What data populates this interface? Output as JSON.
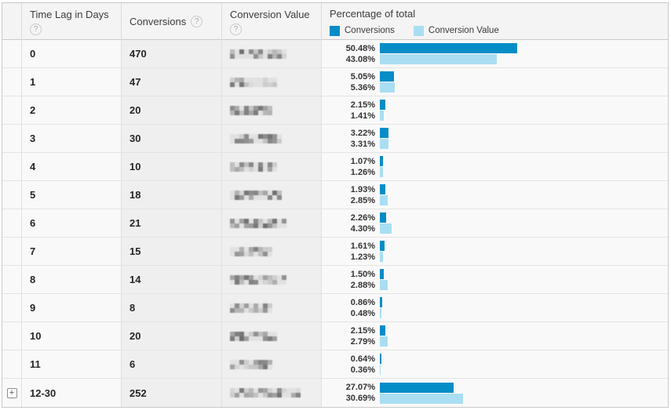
{
  "header": {
    "time_lag": "Time Lag in Days",
    "conversions": "Conversions",
    "conversion_value": "Conversion Value",
    "percentage_title": "Percentage of total",
    "help_icon": "?",
    "legend": [
      {
        "label": "Conversions",
        "color": "#058dc7"
      },
      {
        "label": "Conversion Value",
        "color": "#a9def2"
      }
    ]
  },
  "colors": {
    "conversions_bar": "#058dc7",
    "conversion_value_bar": "#a9def2"
  },
  "expand_icon": "+",
  "rows": [
    {
      "time_lag": "0",
      "conversions": "470",
      "conversion_value_masked": true,
      "mask_width": 73,
      "pct_conversions": 50.48,
      "pct_conversion_value": 43.08,
      "pct_conversions_label": "50.48%",
      "pct_conversion_value_label": "43.08%",
      "expandable": false
    },
    {
      "time_lag": "1",
      "conversions": "47",
      "conversion_value_masked": true,
      "mask_width": 64,
      "pct_conversions": 5.05,
      "pct_conversion_value": 5.36,
      "pct_conversions_label": "5.05%",
      "pct_conversion_value_label": "5.36%",
      "expandable": false
    },
    {
      "time_lag": "2",
      "conversions": "20",
      "conversion_value_masked": true,
      "mask_width": 54,
      "pct_conversions": 2.15,
      "pct_conversion_value": 1.41,
      "pct_conversions_label": "2.15%",
      "pct_conversion_value_label": "1.41%",
      "expandable": false
    },
    {
      "time_lag": "3",
      "conversions": "30",
      "conversion_value_masked": true,
      "mask_width": 68,
      "pct_conversions": 3.22,
      "pct_conversion_value": 3.31,
      "pct_conversions_label": "3.22%",
      "pct_conversion_value_label": "3.31%",
      "expandable": false
    },
    {
      "time_lag": "4",
      "conversions": "10",
      "conversion_value_masked": true,
      "mask_width": 60,
      "pct_conversions": 1.07,
      "pct_conversion_value": 1.26,
      "pct_conversions_label": "1.07%",
      "pct_conversion_value_label": "1.26%",
      "expandable": false
    },
    {
      "time_lag": "5",
      "conversions": "18",
      "conversion_value_masked": true,
      "mask_width": 70,
      "pct_conversions": 1.93,
      "pct_conversion_value": 2.85,
      "pct_conversions_label": "1.93%",
      "pct_conversion_value_label": "2.85%",
      "expandable": false
    },
    {
      "time_lag": "6",
      "conversions": "21",
      "conversion_value_masked": true,
      "mask_width": 76,
      "pct_conversions": 2.26,
      "pct_conversion_value": 4.3,
      "pct_conversions_label": "2.26%",
      "pct_conversion_value_label": "4.30%",
      "expandable": false
    },
    {
      "time_lag": "7",
      "conversions": "15",
      "conversion_value_masked": true,
      "mask_width": 58,
      "pct_conversions": 1.61,
      "pct_conversion_value": 1.23,
      "pct_conversions_label": "1.61%",
      "pct_conversion_value_label": "1.23%",
      "expandable": false
    },
    {
      "time_lag": "8",
      "conversions": "14",
      "conversion_value_masked": true,
      "mask_width": 72,
      "pct_conversions": 1.5,
      "pct_conversion_value": 2.88,
      "pct_conversions_label": "1.50%",
      "pct_conversion_value_label": "2.88%",
      "expandable": false
    },
    {
      "time_lag": "9",
      "conversions": "8",
      "conversion_value_masked": true,
      "mask_width": 55,
      "pct_conversions": 0.86,
      "pct_conversion_value": 0.48,
      "pct_conversions_label": "0.86%",
      "pct_conversion_value_label": "0.48%",
      "expandable": false
    },
    {
      "time_lag": "10",
      "conversions": "20",
      "conversion_value_masked": true,
      "mask_width": 64,
      "pct_conversions": 2.15,
      "pct_conversion_value": 2.79,
      "pct_conversions_label": "2.15%",
      "pct_conversion_value_label": "2.79%",
      "expandable": false
    },
    {
      "time_lag": "11",
      "conversions": "6",
      "conversion_value_masked": true,
      "mask_width": 57,
      "pct_conversions": 0.64,
      "pct_conversion_value": 0.36,
      "pct_conversions_label": "0.64%",
      "pct_conversion_value_label": "0.36%",
      "expandable": false
    },
    {
      "time_lag": "12-30",
      "conversions": "252",
      "conversion_value_masked": true,
      "mask_width": 92,
      "pct_conversions": 27.07,
      "pct_conversion_value": 30.69,
      "pct_conversions_label": "27.07%",
      "pct_conversion_value_label": "30.69%",
      "expandable": true
    }
  ]
}
